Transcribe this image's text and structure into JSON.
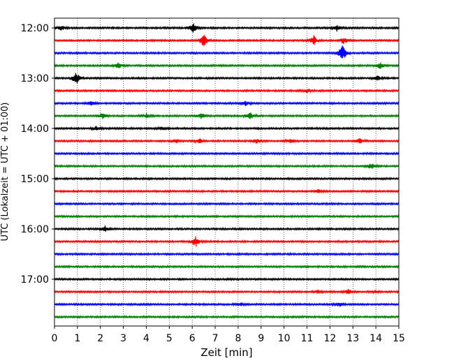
{
  "chart_data": {
    "type": "line",
    "title": "",
    "xlabel": "Zeit  [min]",
    "ylabel": "UTC (Lokalzeit = UTC + 01:00)",
    "xlim": [
      0,
      15
    ],
    "x_ticks": [
      "0",
      "1",
      "2",
      "3",
      "4",
      "5",
      "6",
      "7",
      "8",
      "9",
      "10",
      "11",
      "12",
      "13",
      "14",
      "15"
    ],
    "y_tick_labels": [
      "12:00",
      "13:00",
      "14:00",
      "15:00",
      "16:00",
      "17:00"
    ],
    "grid": "vertical dotted lines at each minute",
    "series_colors": [
      "#000000",
      "#ff0000",
      "#0000ff",
      "#008000"
    ],
    "series": [
      {
        "start": "12:00",
        "events": [
          [
            0.3,
            0.6
          ],
          [
            6.05,
            1.3
          ],
          [
            12.3,
            0.7
          ]
        ]
      },
      {
        "start": "12:15",
        "events": [
          [
            6.5,
            1.8
          ],
          [
            11.3,
            1.2
          ],
          [
            12.6,
            0.8
          ]
        ]
      },
      {
        "start": "12:30",
        "events": [
          [
            12.55,
            2.4
          ]
        ]
      },
      {
        "start": "12:45",
        "events": [
          [
            2.8,
            0.8
          ],
          [
            14.2,
            0.8
          ]
        ]
      },
      {
        "start": "13:00",
        "events": [
          [
            0.95,
            1.8
          ],
          [
            14.1,
            0.6
          ]
        ]
      },
      {
        "start": "13:15",
        "events": [
          [
            11.0,
            0.5
          ]
        ]
      },
      {
        "start": "13:30",
        "events": [
          [
            1.6,
            0.6
          ],
          [
            8.3,
            0.6
          ]
        ]
      },
      {
        "start": "13:45",
        "events": [
          [
            2.1,
            0.7
          ],
          [
            4.0,
            0.5
          ],
          [
            6.4,
            0.7
          ],
          [
            8.5,
            1.0
          ]
        ]
      },
      {
        "start": "14:00",
        "events": [
          [
            1.8,
            0.5
          ],
          [
            4.7,
            0.4
          ]
        ]
      },
      {
        "start": "14:15",
        "events": [
          [
            5.3,
            0.7
          ],
          [
            6.3,
            0.6
          ],
          [
            8.8,
            0.6
          ],
          [
            10.3,
            0.6
          ],
          [
            13.3,
            0.6
          ]
        ]
      },
      {
        "start": "14:30",
        "events": []
      },
      {
        "start": "14:45",
        "events": [
          [
            13.8,
            0.7
          ]
        ]
      },
      {
        "start": "15:00",
        "events": []
      },
      {
        "start": "15:15",
        "events": [
          [
            11.5,
            0.4
          ]
        ]
      },
      {
        "start": "15:30",
        "events": []
      },
      {
        "start": "15:45",
        "events": []
      },
      {
        "start": "16:00",
        "events": [
          [
            2.2,
            0.7
          ]
        ]
      },
      {
        "start": "16:15",
        "events": [
          [
            6.15,
            1.3
          ]
        ]
      },
      {
        "start": "16:30",
        "events": []
      },
      {
        "start": "16:45",
        "events": []
      },
      {
        "start": "17:00",
        "events": []
      },
      {
        "start": "17:15",
        "events": [
          [
            11.5,
            0.5
          ],
          [
            12.8,
            0.6
          ],
          [
            14.0,
            0.4
          ]
        ]
      },
      {
        "start": "17:30",
        "events": [
          [
            8.1,
            0.4
          ],
          [
            12.4,
            0.5
          ]
        ]
      },
      {
        "start": "17:45",
        "events": []
      }
    ]
  }
}
